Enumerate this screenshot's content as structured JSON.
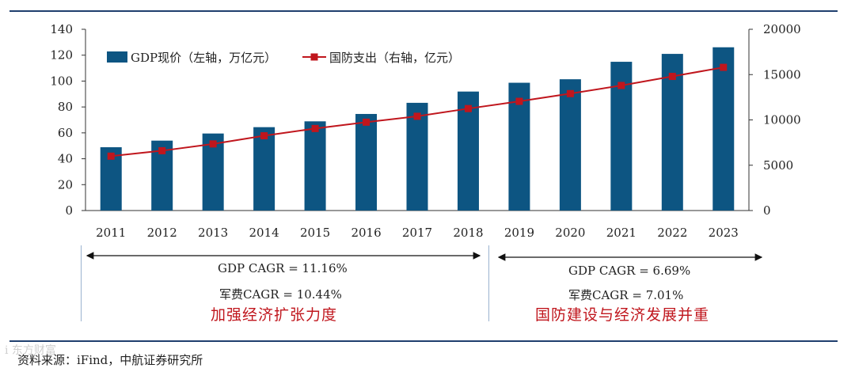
{
  "chart_data": {
    "type": "bar+line",
    "categories": [
      "2011",
      "2012",
      "2013",
      "2014",
      "2015",
      "2016",
      "2017",
      "2018",
      "2019",
      "2020",
      "2021",
      "2022",
      "2023"
    ],
    "series": [
      {
        "name": "GDP现价（左轴，万亿元）",
        "type": "bar",
        "axis": "left",
        "values": [
          48.9,
          54.0,
          59.5,
          64.4,
          68.9,
          74.6,
          83.2,
          91.9,
          98.7,
          101.4,
          114.9,
          121.0,
          126.1
        ]
      },
      {
        "name": "国防支出（右轴，亿元）",
        "type": "line",
        "axis": "right",
        "values": [
          6000,
          6600,
          7350,
          8250,
          9050,
          9750,
          10400,
          11250,
          12050,
          12900,
          13800,
          14800,
          15800
        ]
      }
    ],
    "left_axis": {
      "min": 0,
      "max": 140,
      "ticks": [
        "0",
        "20",
        "40",
        "60",
        "80",
        "100",
        "120",
        "140"
      ]
    },
    "right_axis": {
      "min": 0,
      "max": 20000,
      "ticks": [
        "0",
        "5000",
        "10000",
        "15000",
        "20000"
      ]
    },
    "legend_position": "top-left",
    "colors": {
      "bar": "#0d5582",
      "line": "#c0161d",
      "axis": "#333333",
      "rule": "#1f3f6e"
    }
  },
  "periods": [
    {
      "gdp_cagr": "GDP CAGR = 11.16%",
      "mil_cagr": "军费CAGR = 10.44%",
      "theme": "加强经济扩张力度"
    },
    {
      "gdp_cagr": "GDP CAGR = 6.69%",
      "mil_cagr": "军费CAGR = 7.01%",
      "theme": "国防建设与经济发展并重"
    }
  ],
  "source": "资料来源：iFind，中航证券研究所",
  "watermark": "i 东方财富"
}
